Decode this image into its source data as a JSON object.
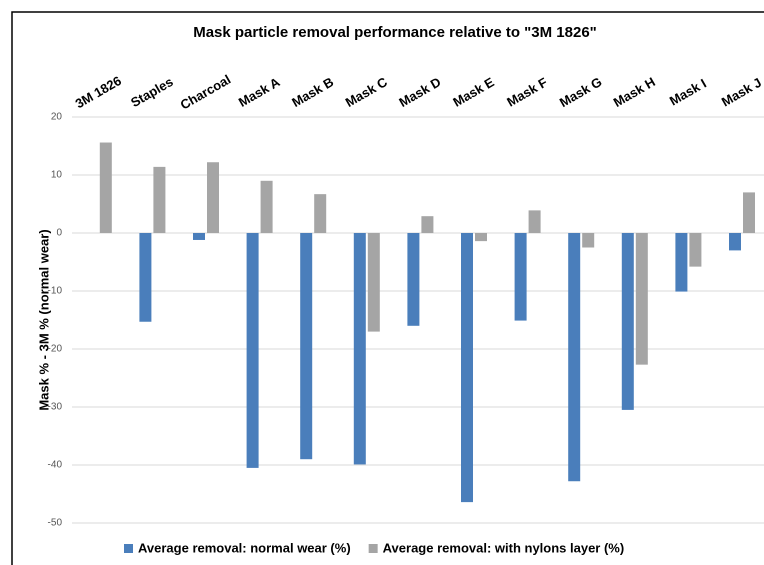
{
  "chart_data": {
    "type": "bar",
    "title": "Mask particle removal performance relative to \"3M 1826\"",
    "y_label": "Mask % - 3M % (normal wear)",
    "categories": [
      "3M 1826",
      "Staples",
      "Charcoal",
      "Mask A",
      "Mask B",
      "Mask C",
      "Mask D",
      "Mask E",
      "Mask F",
      "Mask G",
      "Mask H",
      "Mask I",
      "Mask J"
    ],
    "series": [
      {
        "name": "Average removal: normal wear (%)",
        "color": "#4a7ebb",
        "values": [
          0,
          -15.3,
          -1.2,
          -40.5,
          -39,
          -39.9,
          -16,
          -46.4,
          -15.1,
          -42.8,
          -30.5,
          -10.1,
          -3
        ]
      },
      {
        "name": "Average removal: with nylons layer (%)",
        "color": "#a5a5a5",
        "values": [
          15.6,
          11.4,
          12.2,
          9,
          6.7,
          -17,
          2.9,
          -1.4,
          3.9,
          -2.5,
          -22.7,
          -5.8,
          7
        ]
      }
    ],
    "ylim": [
      -50,
      20
    ],
    "yticks": [
      20,
      10,
      0,
      -10,
      -20,
      -30,
      -40,
      -50
    ],
    "grid": true,
    "legend": "bottom"
  }
}
